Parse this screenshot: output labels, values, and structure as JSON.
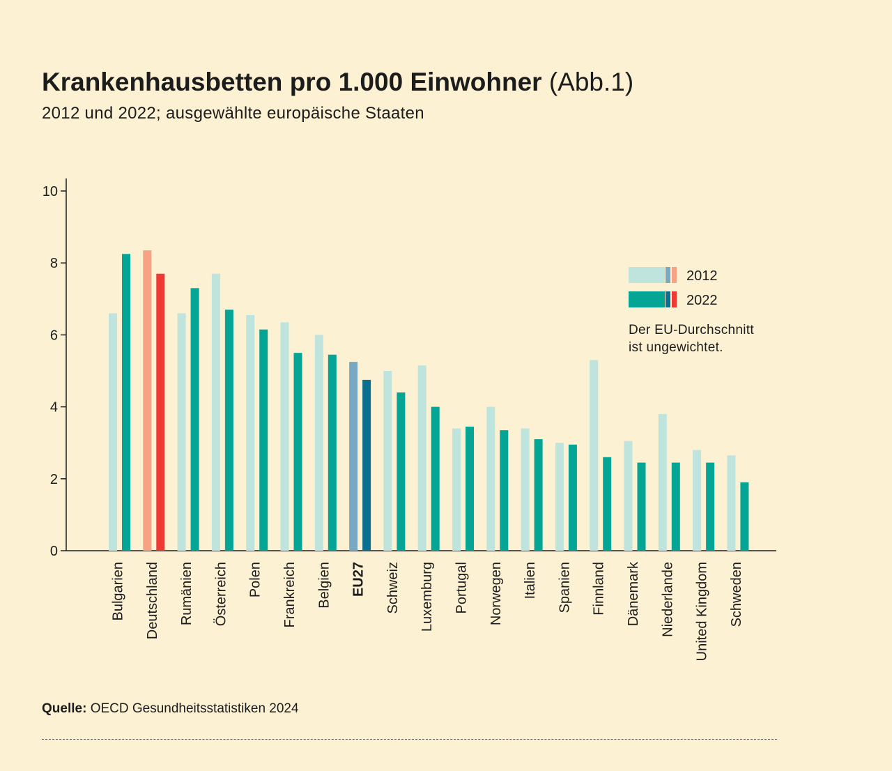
{
  "header": {
    "title_bold": "Krankenhausbetten pro 1.000 Einwohner",
    "title_suffix": "(Abb.1)",
    "subtitle": "2012 und 2022; ausgewählte europäische Staaten"
  },
  "chart_data": {
    "type": "bar",
    "title": "Krankenhausbetten pro 1.000 Einwohner",
    "ylim": [
      0,
      10
    ],
    "yticks": [
      0,
      2,
      4,
      6,
      8,
      10
    ],
    "categories": [
      "Bulgarien",
      "Deutschland",
      "Rumänien",
      "Österreich",
      "Polen",
      "Frankreich",
      "Belgien",
      "EU27",
      "Schweiz",
      "Luxemburg",
      "Portugal",
      "Norwegen",
      "Italien",
      "Spanien",
      "Finnland",
      "Dänemark",
      "Niederlande",
      "United Kingdom",
      "Schweden"
    ],
    "highlight": {
      "Deutschland": "germany",
      "EU27": "eu"
    },
    "bold_categories": [
      "EU27"
    ],
    "series": [
      {
        "name": "2012",
        "values": [
          6.6,
          8.35,
          6.6,
          7.7,
          6.55,
          6.35,
          6.0,
          5.25,
          5.0,
          5.15,
          3.4,
          4.0,
          3.4,
          3.0,
          5.3,
          3.05,
          3.8,
          2.8,
          2.65
        ]
      },
      {
        "name": "2022",
        "values": [
          8.25,
          7.7,
          7.3,
          6.7,
          6.15,
          5.5,
          5.45,
          4.75,
          4.4,
          4.0,
          3.45,
          3.35,
          3.1,
          2.95,
          2.6,
          2.45,
          2.45,
          2.45,
          1.9
        ]
      }
    ],
    "legend": {
      "position": "right",
      "entries": [
        "2012",
        "2022"
      ]
    }
  },
  "colors": {
    "background": "#fdf1d3",
    "light_2012": "#bfe3dd",
    "dark_2022": "#05a596",
    "germany_2012": "#f7a185",
    "germany_2022": "#ef3a34",
    "eu_2012": "#79a8c3",
    "eu_2022": "#0b6f8f",
    "axis": "#1c1c1c"
  },
  "note": {
    "line1": "Der EU-Durchschnitt",
    "line2": "ist ungewichtet."
  },
  "source": {
    "label": "Quelle:",
    "text": "OECD Gesundheitsstatistiken 2024"
  }
}
